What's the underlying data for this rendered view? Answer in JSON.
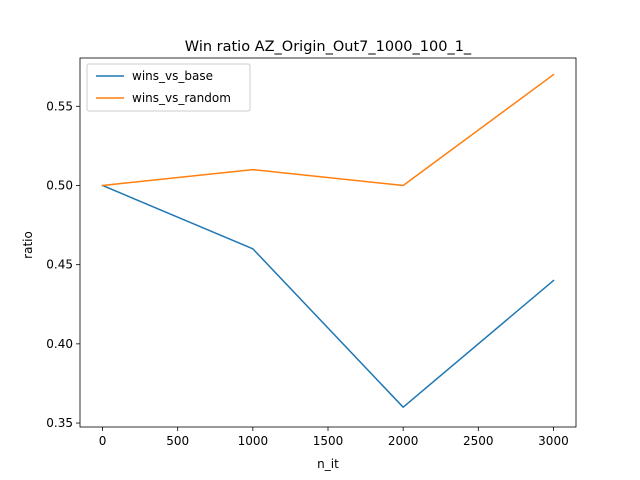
{
  "chart_data": {
    "type": "line",
    "title": "Win ratio AZ_Origin_Out7_1000_100_1_",
    "xlabel": "n_it",
    "ylabel": "ratio",
    "x": [
      0,
      1000,
      2000,
      3000
    ],
    "xlim": [
      -150,
      3150
    ],
    "ylim": [
      0.3475,
      0.5805
    ],
    "xticks": [
      0,
      500,
      1000,
      1500,
      2000,
      2500,
      3000
    ],
    "xtick_labels": [
      "0",
      "500",
      "1000",
      "1500",
      "2000",
      "2500",
      "3000"
    ],
    "yticks": [
      0.35,
      0.4,
      0.45,
      0.5,
      0.55
    ],
    "ytick_labels": [
      "0.35",
      "0.40",
      "0.45",
      "0.50",
      "0.55"
    ],
    "grid": false,
    "legend_position": "top-left",
    "series": [
      {
        "name": "wins_vs_base",
        "color": "#1f77b4",
        "values": [
          0.5,
          0.46,
          0.36,
          0.44
        ]
      },
      {
        "name": "wins_vs_random",
        "color": "#ff7f0e",
        "values": [
          0.5,
          0.51,
          0.5,
          0.57
        ]
      }
    ]
  }
}
